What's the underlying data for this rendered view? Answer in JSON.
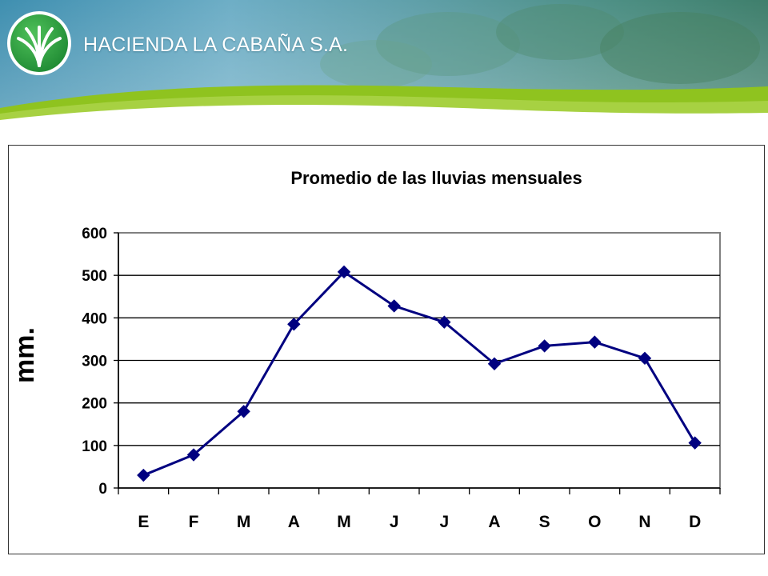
{
  "header": {
    "brand_name": "HACIENDA LA CABAÑA S.A.",
    "logo_icon": "palm-leaf-logo-icon"
  },
  "colors": {
    "series": "#000080",
    "grid": "#000000",
    "banner_green": "#8fc31f",
    "logo_green": "#2a9d3c"
  },
  "chart_data": {
    "type": "line",
    "title": "Promedio de las lluvias mensuales",
    "xlabel": "",
    "ylabel": "mm.",
    "categories": [
      "E",
      "F",
      "M",
      "A",
      "M",
      "J",
      "J",
      "A",
      "S",
      "O",
      "N",
      "D"
    ],
    "series": [
      {
        "values": [
          30,
          78,
          180,
          385,
          508,
          428,
          390,
          292,
          334,
          343,
          305,
          106
        ]
      }
    ],
    "ylim": [
      0,
      600
    ],
    "yticks": [
      "0",
      "100",
      "200",
      "300",
      "400",
      "500",
      "600"
    ],
    "grid": true,
    "legend": "none",
    "marker": "diamond"
  }
}
